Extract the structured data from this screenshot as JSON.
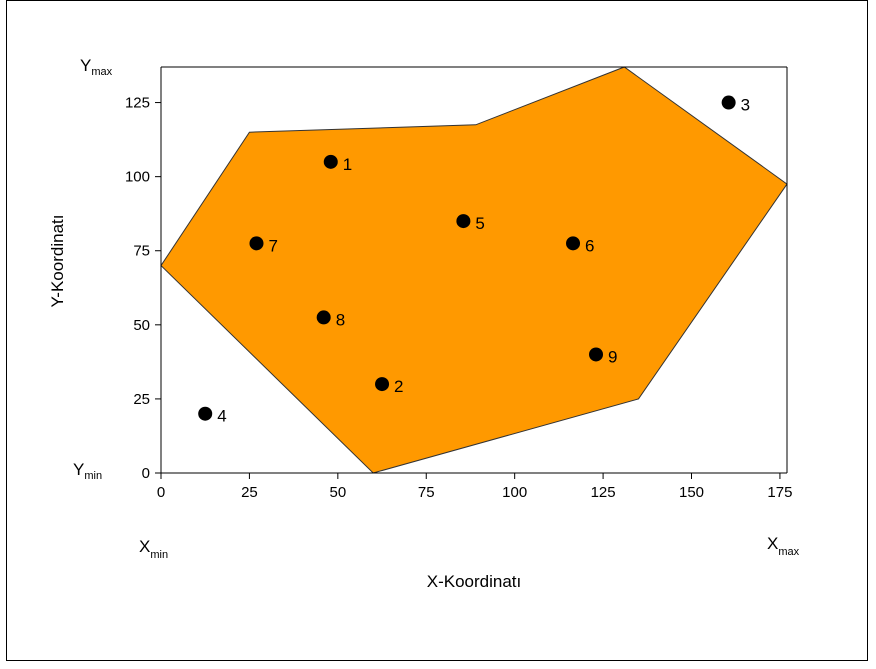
{
  "chart_data": {
    "type": "scatter",
    "xlabel": "X-Koordinatı",
    "ylabel": "Y-Koordinatı",
    "xlim": [
      0,
      177
    ],
    "ylim": [
      0,
      137
    ],
    "x_ticks": [
      0,
      25,
      50,
      75,
      100,
      125,
      150,
      175
    ],
    "y_ticks": [
      0,
      25,
      50,
      75,
      100,
      125
    ],
    "grid": false,
    "region": {
      "fill": "#ff9900",
      "stroke": "#333333",
      "vertices": [
        [
          0,
          70
        ],
        [
          25,
          115
        ],
        [
          89,
          117.5
        ],
        [
          131,
          137
        ],
        [
          177,
          97.5
        ],
        [
          135,
          25
        ],
        [
          60,
          0
        ]
      ]
    },
    "points": [
      {
        "label": "1",
        "x": 48,
        "y": 105
      },
      {
        "label": "2",
        "x": 62.5,
        "y": 30
      },
      {
        "label": "3",
        "x": 160.5,
        "y": 125
      },
      {
        "label": "4",
        "x": 12.5,
        "y": 20
      },
      {
        "label": "5",
        "x": 85.5,
        "y": 85
      },
      {
        "label": "6",
        "x": 116.5,
        "y": 77.5
      },
      {
        "label": "7",
        "x": 27,
        "y": 77.5
      },
      {
        "label": "8",
        "x": 46,
        "y": 52.5
      },
      {
        "label": "9",
        "x": 123,
        "y": 40
      }
    ],
    "bound_labels": {
      "y_max": {
        "main": "Y",
        "sub": "max"
      },
      "y_min": {
        "main": "Y",
        "sub": "min"
      },
      "x_min": {
        "main": "X",
        "sub": "min"
      },
      "x_max": {
        "main": "X",
        "sub": "max"
      }
    }
  }
}
